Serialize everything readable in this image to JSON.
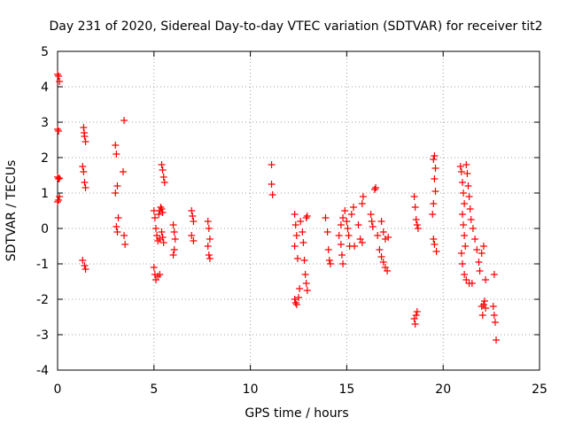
{
  "chart_data": {
    "type": "scatter",
    "title": "Day 231 of 2020, Sidereal Day-to-day VTEC variation (SDTVAR) for receiver tit2",
    "xlabel": "GPS time / hours",
    "ylabel": "SDTVAR / TECUs",
    "xlim": [
      0,
      25
    ],
    "ylim": [
      -4,
      5
    ],
    "xticks": [
      0,
      5,
      10,
      15,
      20,
      25
    ],
    "yticks": [
      -4,
      -3,
      -2,
      -1,
      0,
      1,
      2,
      3,
      4,
      5
    ],
    "xtick_labels": [
      "0",
      "5",
      "10",
      "15",
      "20",
      "25"
    ],
    "ytick_labels": [
      "-4",
      "-3",
      "-2",
      "-1",
      "0",
      "1",
      "2",
      "3",
      "4",
      "5"
    ],
    "grid": true,
    "marker": "+",
    "marker_color": "#ff0000",
    "series": [
      {
        "name": "tit2",
        "points": [
          [
            0.0,
            4.35
          ],
          [
            0.05,
            4.3
          ],
          [
            0.1,
            4.15
          ],
          [
            0.0,
            2.8
          ],
          [
            0.05,
            2.75
          ],
          [
            0.0,
            1.45
          ],
          [
            0.05,
            1.4
          ],
          [
            0.1,
            1.42
          ],
          [
            0.0,
            0.75
          ],
          [
            0.05,
            0.8
          ],
          [
            0.1,
            0.9
          ],
          [
            1.35,
            2.85
          ],
          [
            1.4,
            2.6
          ],
          [
            1.45,
            2.45
          ],
          [
            1.38,
            2.7
          ],
          [
            1.3,
            1.75
          ],
          [
            1.35,
            1.6
          ],
          [
            1.4,
            1.3
          ],
          [
            1.45,
            1.15
          ],
          [
            1.3,
            -0.9
          ],
          [
            1.4,
            -1.05
          ],
          [
            1.45,
            -1.15
          ],
          [
            3.0,
            2.35
          ],
          [
            3.05,
            2.1
          ],
          [
            3.1,
            1.2
          ],
          [
            3.0,
            1.0
          ],
          [
            3.15,
            0.3
          ],
          [
            3.05,
            0.05
          ],
          [
            3.1,
            -0.1
          ],
          [
            3.45,
            3.05
          ],
          [
            3.4,
            1.6
          ],
          [
            3.45,
            -0.2
          ],
          [
            3.5,
            -0.45
          ],
          [
            5.0,
            -1.1
          ],
          [
            5.05,
            -1.3
          ],
          [
            5.1,
            -1.45
          ],
          [
            5.2,
            -1.35
          ],
          [
            5.3,
            -1.3
          ],
          [
            5.0,
            0.5
          ],
          [
            5.05,
            0.3
          ],
          [
            5.1,
            0.0
          ],
          [
            5.15,
            -0.2
          ],
          [
            5.2,
            -0.35
          ],
          [
            5.25,
            0.4
          ],
          [
            5.3,
            0.5
          ],
          [
            5.35,
            0.6
          ],
          [
            5.4,
            0.55
          ],
          [
            5.45,
            0.45
          ],
          [
            5.3,
            -0.3
          ],
          [
            5.4,
            -0.1
          ],
          [
            5.5,
            -0.4
          ],
          [
            5.45,
            -0.25
          ],
          [
            5.4,
            1.8
          ],
          [
            5.45,
            1.65
          ],
          [
            5.5,
            1.45
          ],
          [
            5.55,
            1.3
          ],
          [
            6.0,
            0.1
          ],
          [
            6.05,
            -0.1
          ],
          [
            6.1,
            -0.3
          ],
          [
            6.05,
            -0.6
          ],
          [
            6.0,
            -0.75
          ],
          [
            6.95,
            0.5
          ],
          [
            7.0,
            0.35
          ],
          [
            7.05,
            0.2
          ],
          [
            6.95,
            -0.2
          ],
          [
            7.05,
            -0.35
          ],
          [
            7.8,
            0.2
          ],
          [
            7.85,
            0.0
          ],
          [
            7.9,
            -0.3
          ],
          [
            7.8,
            -0.5
          ],
          [
            7.85,
            -0.75
          ],
          [
            7.9,
            -0.85
          ],
          [
            11.1,
            1.8
          ],
          [
            11.1,
            1.25
          ],
          [
            11.15,
            0.95
          ],
          [
            12.3,
            0.4
          ],
          [
            12.35,
            0.1
          ],
          [
            12.4,
            -0.2
          ],
          [
            12.3,
            -0.5
          ],
          [
            12.45,
            -0.85
          ],
          [
            12.3,
            -2.0
          ],
          [
            12.35,
            -2.1
          ],
          [
            12.4,
            -2.15
          ],
          [
            12.5,
            -1.95
          ],
          [
            12.55,
            -1.7
          ],
          [
            12.6,
            0.2
          ],
          [
            12.7,
            -0.1
          ],
          [
            12.75,
            -0.4
          ],
          [
            12.8,
            -0.9
          ],
          [
            12.85,
            -1.3
          ],
          [
            12.9,
            -1.55
          ],
          [
            12.95,
            -1.75
          ],
          [
            12.9,
            0.3
          ],
          [
            12.95,
            0.35
          ],
          [
            13.9,
            0.3
          ],
          [
            14.0,
            -0.1
          ],
          [
            14.05,
            -0.6
          ],
          [
            14.1,
            -0.9
          ],
          [
            14.15,
            -1.0
          ],
          [
            14.6,
            -0.2
          ],
          [
            14.7,
            -0.45
          ],
          [
            14.75,
            -0.75
          ],
          [
            14.8,
            -1.0
          ],
          [
            14.7,
            0.1
          ],
          [
            14.8,
            0.3
          ],
          [
            14.9,
            0.5
          ],
          [
            15.0,
            0.2
          ],
          [
            15.05,
            0.0
          ],
          [
            15.1,
            -0.2
          ],
          [
            15.15,
            -0.5
          ],
          [
            15.25,
            0.4
          ],
          [
            15.35,
            0.6
          ],
          [
            15.4,
            -0.5
          ],
          [
            15.6,
            0.1
          ],
          [
            15.7,
            -0.3
          ],
          [
            15.8,
            -0.4
          ],
          [
            15.85,
            0.9
          ],
          [
            15.8,
            0.7
          ],
          [
            16.25,
            0.4
          ],
          [
            16.3,
            0.2
          ],
          [
            16.35,
            0.05
          ],
          [
            16.45,
            1.1
          ],
          [
            16.5,
            1.15
          ],
          [
            16.6,
            -0.2
          ],
          [
            16.7,
            -0.6
          ],
          [
            16.8,
            -0.8
          ],
          [
            16.9,
            -0.95
          ],
          [
            17.0,
            -1.1
          ],
          [
            17.1,
            -1.2
          ],
          [
            16.8,
            0.2
          ],
          [
            16.9,
            -0.1
          ],
          [
            17.0,
            -0.3
          ],
          [
            17.15,
            -0.25
          ],
          [
            18.5,
            0.9
          ],
          [
            18.55,
            0.6
          ],
          [
            18.6,
            0.25
          ],
          [
            18.65,
            0.1
          ],
          [
            18.7,
            0.0
          ],
          [
            18.5,
            -2.55
          ],
          [
            18.55,
            -2.7
          ],
          [
            18.6,
            -2.45
          ],
          [
            18.65,
            -2.35
          ],
          [
            19.5,
            1.95
          ],
          [
            19.55,
            2.05
          ],
          [
            19.6,
            1.7
          ],
          [
            19.55,
            1.4
          ],
          [
            19.6,
            1.05
          ],
          [
            19.5,
            0.7
          ],
          [
            19.45,
            0.4
          ],
          [
            19.5,
            -0.3
          ],
          [
            19.55,
            -0.45
          ],
          [
            19.65,
            -0.65
          ],
          [
            20.9,
            1.75
          ],
          [
            20.95,
            1.6
          ],
          [
            21.0,
            1.3
          ],
          [
            21.05,
            1.0
          ],
          [
            21.1,
            0.7
          ],
          [
            21.0,
            0.4
          ],
          [
            21.05,
            0.1
          ],
          [
            21.1,
            -0.2
          ],
          [
            21.15,
            -0.5
          ],
          [
            20.95,
            -0.7
          ],
          [
            21.0,
            -1.0
          ],
          [
            21.1,
            -1.3
          ],
          [
            21.2,
            -1.45
          ],
          [
            21.35,
            -1.55
          ],
          [
            21.5,
            -1.55
          ],
          [
            21.2,
            1.8
          ],
          [
            21.25,
            1.55
          ],
          [
            21.3,
            1.2
          ],
          [
            21.35,
            0.9
          ],
          [
            21.4,
            0.55
          ],
          [
            21.45,
            0.25
          ],
          [
            21.55,
            0.0
          ],
          [
            21.65,
            -0.3
          ],
          [
            21.75,
            -0.6
          ],
          [
            21.85,
            -0.95
          ],
          [
            21.9,
            -1.2
          ],
          [
            22.0,
            -0.7
          ],
          [
            22.1,
            -0.5
          ],
          [
            22.2,
            -1.45
          ],
          [
            22.0,
            -2.2
          ],
          [
            22.05,
            -2.45
          ],
          [
            22.1,
            -2.15
          ],
          [
            22.15,
            -2.05
          ],
          [
            22.2,
            -2.25
          ],
          [
            22.65,
            -1.3
          ],
          [
            22.6,
            -2.2
          ],
          [
            22.65,
            -2.45
          ],
          [
            22.7,
            -2.65
          ],
          [
            22.75,
            -3.15
          ]
        ]
      }
    ]
  }
}
